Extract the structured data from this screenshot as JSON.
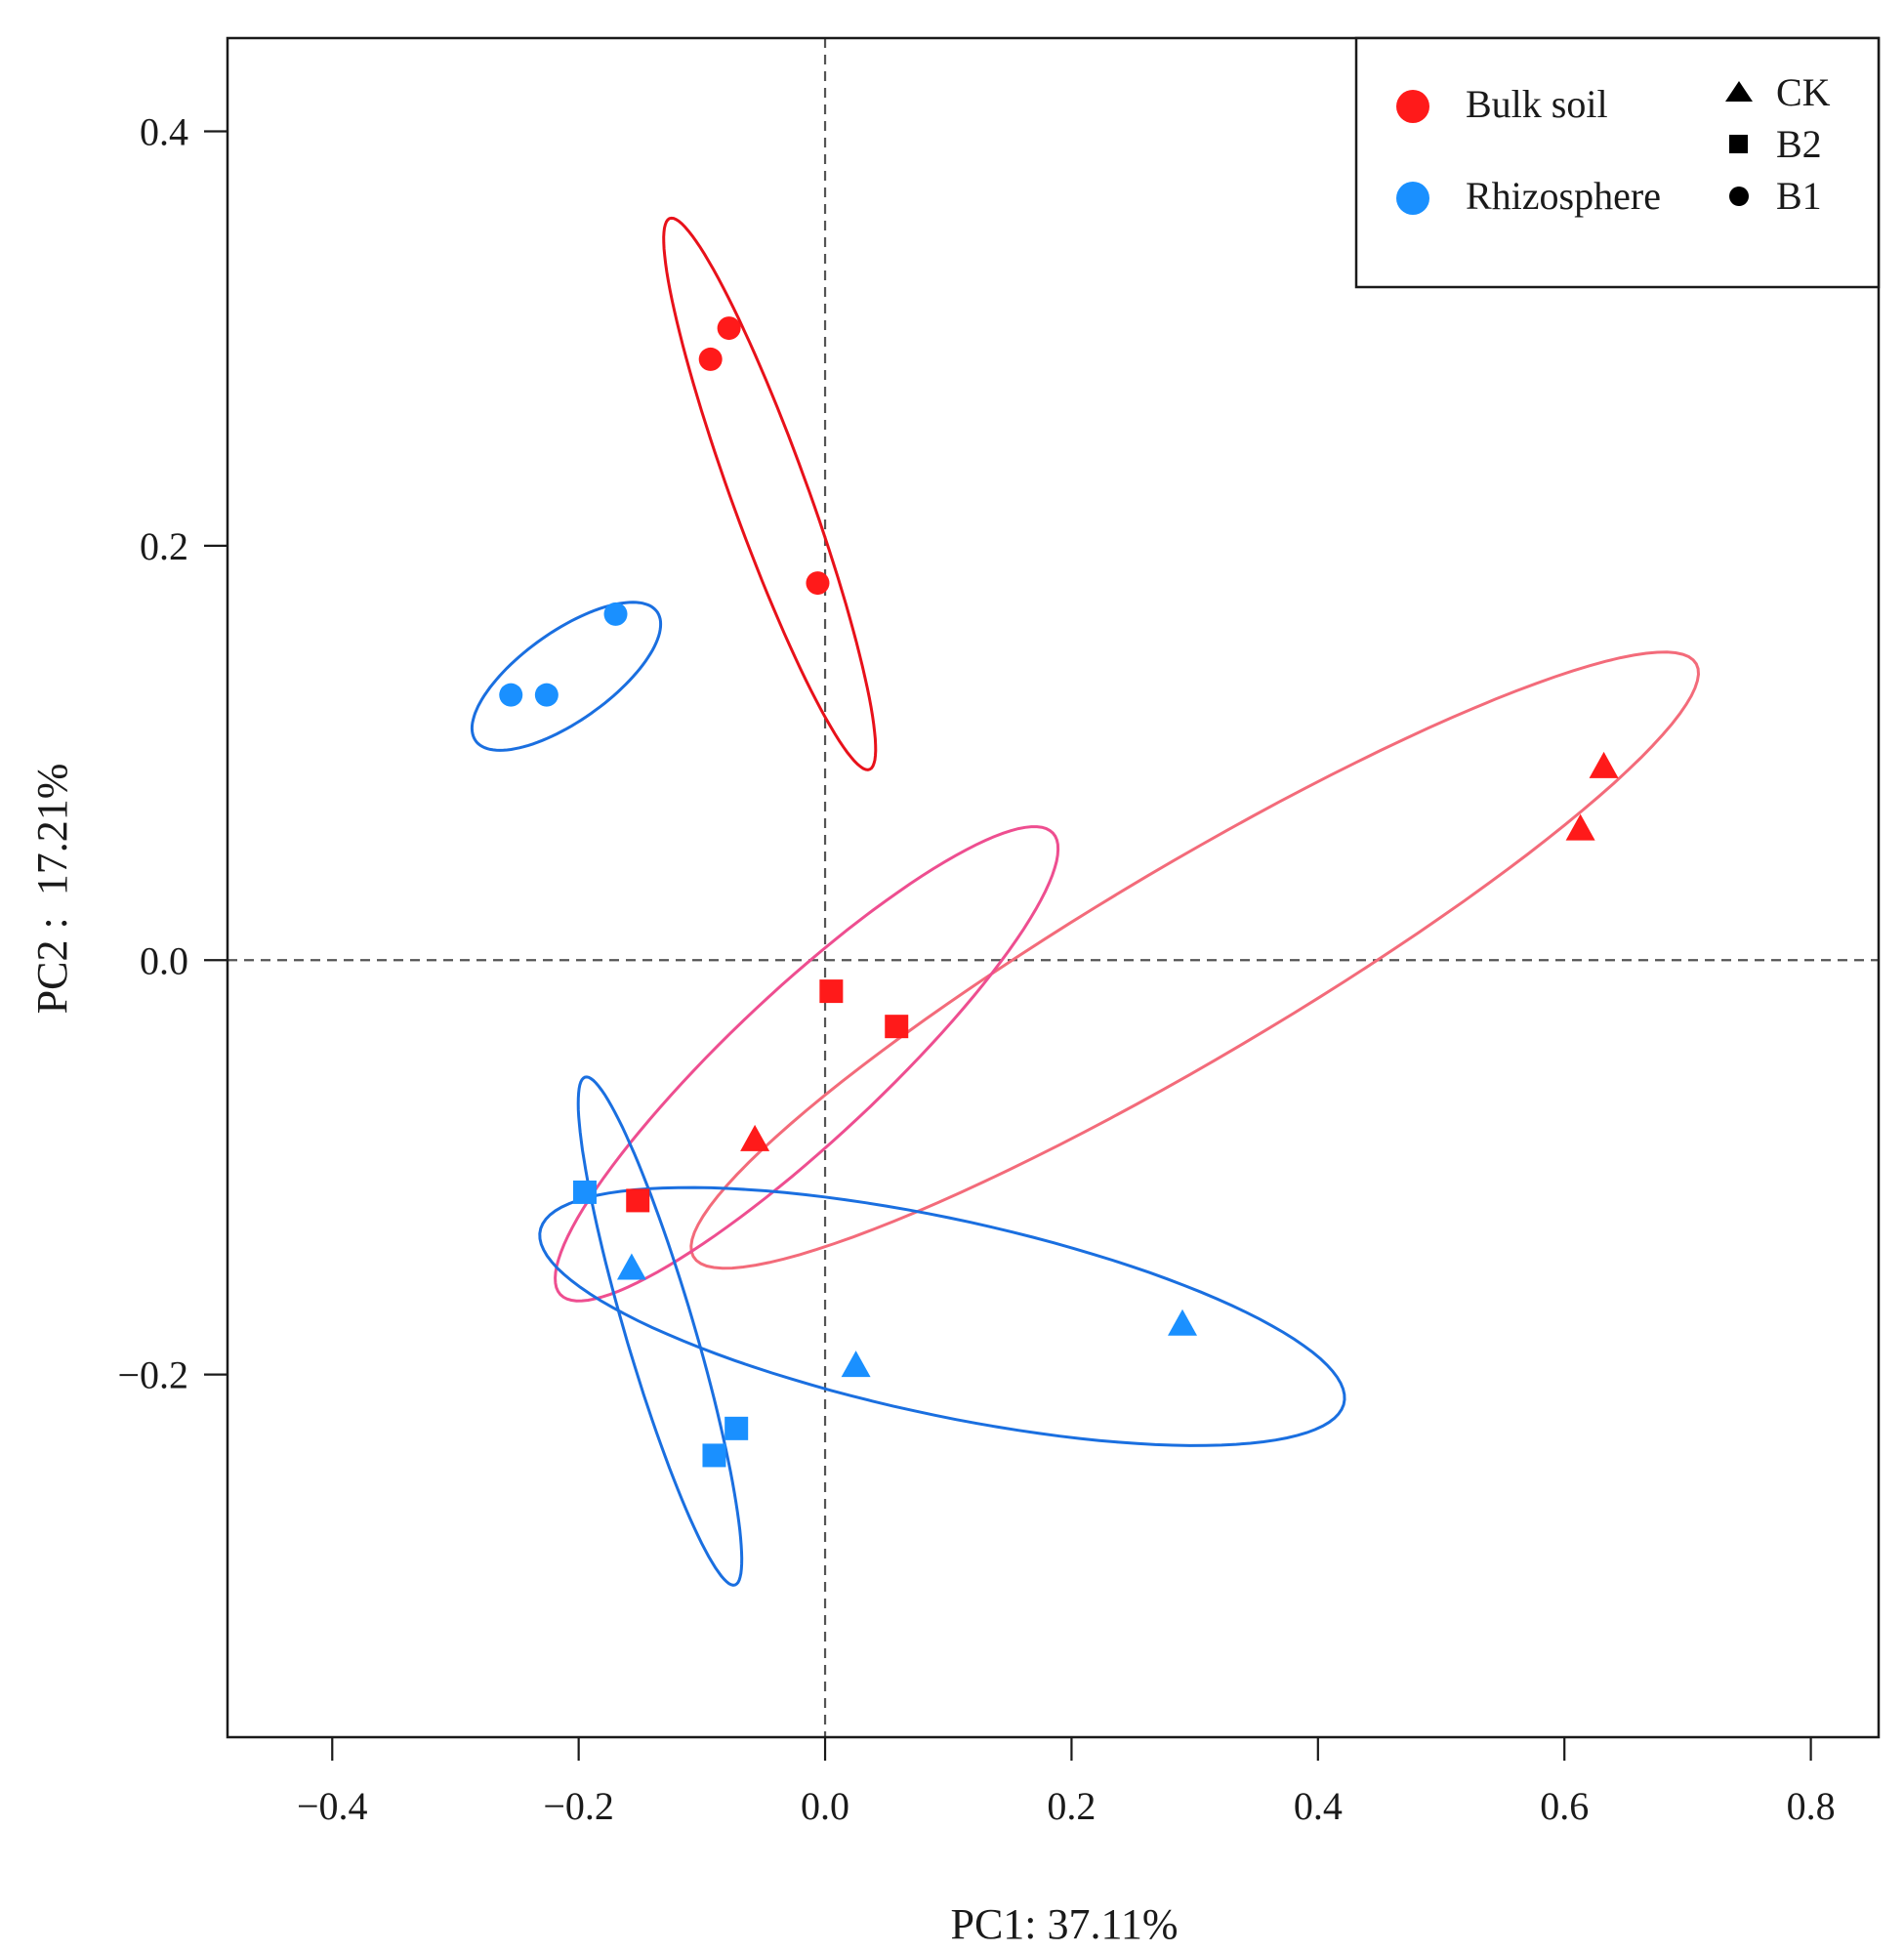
{
  "chart_data": {
    "type": "scatter",
    "title": "",
    "xlabel": "PC1: 37.11%",
    "ylabel": "PC2 :  17.21%",
    "xlim": [
      -0.485,
      0.855
    ],
    "ylim": [
      -0.375,
      0.445
    ],
    "x_ticks": [
      -0.4,
      -0.2,
      0.0,
      0.2,
      0.4,
      0.6,
      0.8
    ],
    "y_ticks": [
      -0.2,
      0.0,
      0.2,
      0.4
    ],
    "x_tick_labels": [
      "−0.4",
      "−0.2",
      "0.0",
      "0.2",
      "0.4",
      "0.6",
      "0.8"
    ],
    "y_tick_labels": [
      "−0.2",
      "0.0",
      "0.2",
      "0.4"
    ],
    "reference_lines": {
      "x": 0.0,
      "y": 0.0,
      "style": "dashed"
    },
    "colors": {
      "Bulk soil": "#ff1a1a",
      "Rhizosphere": "#1a90ff",
      "axis": "#1a1a1a",
      "refline": "#555555"
    },
    "legend": {
      "placement": "top-right",
      "groups": [
        {
          "label": "Bulk soil",
          "color": "#ff1a1a"
        },
        {
          "label": "Rhizosphere",
          "color": "#1a90ff"
        }
      ],
      "treatments": [
        {
          "label": "CK",
          "shape": "triangle"
        },
        {
          "label": "B2",
          "shape": "square"
        },
        {
          "label": "B1",
          "shape": "circle"
        }
      ]
    },
    "series": [
      {
        "name": "Bulk soil B1",
        "group": "Bulk soil",
        "treatment": "B1",
        "shape": "circle",
        "color": "#ff1a1a",
        "points": [
          [
            -0.093,
            0.29
          ],
          [
            -0.078,
            0.305
          ],
          [
            -0.006,
            0.182
          ]
        ]
      },
      {
        "name": "Rhizosphere B1",
        "group": "Rhizosphere",
        "treatment": "B1",
        "shape": "circle",
        "color": "#1a90ff",
        "points": [
          [
            -0.255,
            0.128
          ],
          [
            -0.226,
            0.128
          ],
          [
            -0.17,
            0.167
          ]
        ]
      },
      {
        "name": "Bulk soil B2",
        "group": "Bulk soil",
        "treatment": "B2",
        "shape": "square",
        "color": "#ff1a1a",
        "points": [
          [
            0.005,
            -0.015
          ],
          [
            0.058,
            -0.032
          ],
          [
            -0.152,
            -0.116
          ]
        ]
      },
      {
        "name": "Bulk soil CK",
        "group": "Bulk soil",
        "treatment": "CK",
        "shape": "triangle",
        "color": "#ff1a1a",
        "points": [
          [
            0.632,
            0.093
          ],
          [
            0.613,
            0.063
          ],
          [
            -0.057,
            -0.087
          ]
        ]
      },
      {
        "name": "Rhizosphere B2",
        "group": "Rhizosphere",
        "treatment": "B2",
        "shape": "square",
        "color": "#1a90ff",
        "points": [
          [
            -0.195,
            -0.112
          ],
          [
            -0.072,
            -0.226
          ],
          [
            -0.09,
            -0.239
          ]
        ]
      },
      {
        "name": "Rhizosphere CK",
        "group": "Rhizosphere",
        "treatment": "CK",
        "shape": "triangle",
        "color": "#1a90ff",
        "points": [
          [
            -0.157,
            -0.149
          ],
          [
            0.025,
            -0.196
          ],
          [
            0.29,
            -0.176
          ]
        ]
      }
    ],
    "ellipses": [
      {
        "name": "Bulk soil B1",
        "color": "#e8111a",
        "cx": -0.045,
        "cy": 0.225,
        "rx": 0.156,
        "ry": 0.028,
        "angle_deg": -58
      },
      {
        "name": "Rhizosphere B1",
        "color": "#1a6fe0",
        "cx": -0.21,
        "cy": 0.137,
        "rx": 0.081,
        "ry": 0.024,
        "angle_deg": 20
      },
      {
        "name": "Bulk soil CK",
        "color": "#f36b7a",
        "cx": 0.3,
        "cy": -0.0,
        "rx": 0.432,
        "ry": 0.051,
        "angle_deg": 19
      },
      {
        "name": "Bulk soil B2",
        "color": "#ee4e90",
        "cx": -0.015,
        "cy": -0.05,
        "rx": 0.23,
        "ry": 0.043,
        "angle_deg": 28
      },
      {
        "name": "Rhizosphere CK",
        "color": "#1a6fe0",
        "cx": 0.095,
        "cy": -0.172,
        "rx": 0.329,
        "ry": 0.048,
        "angle_deg": -7
      },
      {
        "name": "Rhizosphere B2",
        "color": "#1a6fe0",
        "cx": -0.134,
        "cy": -0.179,
        "rx": 0.137,
        "ry": 0.026,
        "angle_deg": -63
      }
    ]
  }
}
